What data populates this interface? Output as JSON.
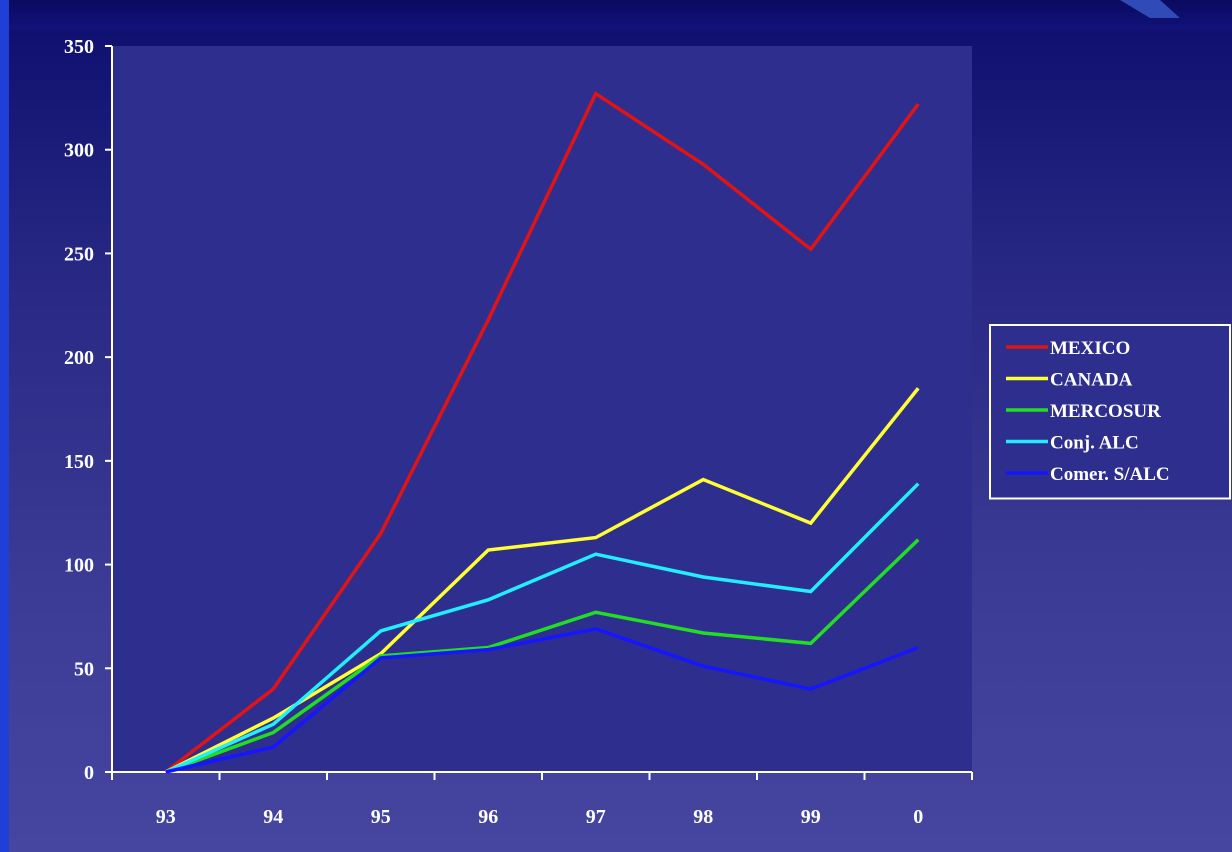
{
  "chart_data": {
    "type": "line",
    "title": "",
    "xlabel": "",
    "ylabel": "",
    "categories": [
      "93",
      "94",
      "95",
      "96",
      "97",
      "98",
      "99",
      "0"
    ],
    "ylim": [
      0,
      350
    ],
    "yticks": [
      0,
      50,
      100,
      150,
      200,
      250,
      300,
      350
    ],
    "grid": false,
    "legend_position": "right",
    "series": [
      {
        "name": "MEXICO",
        "color": "#e01414",
        "values": [
          0,
          40,
          115,
          218,
          327,
          293,
          252,
          322
        ]
      },
      {
        "name": "CANADA",
        "color": "#ffff33",
        "values": [
          0,
          26,
          57,
          107,
          113,
          141,
          120,
          185
        ]
      },
      {
        "name": "MERCOSUR",
        "color": "#22dd22",
        "values": [
          0,
          19,
          56,
          60,
          77,
          67,
          62,
          112
        ]
      },
      {
        "name": "Conj. ALC",
        "color": "#22eeff",
        "values": [
          0,
          23,
          68,
          83,
          105,
          94,
          87,
          139
        ]
      },
      {
        "name": "Comer. S/ALC",
        "color": "#1515ff",
        "values": [
          0,
          12,
          55,
          59,
          69,
          51,
          40,
          60
        ]
      }
    ],
    "colors": {
      "plot_area": "#2e2e8e",
      "axis": "#ffffff",
      "legend_bg": "#2e2e8e",
      "legend_border": "#ffffff"
    }
  }
}
